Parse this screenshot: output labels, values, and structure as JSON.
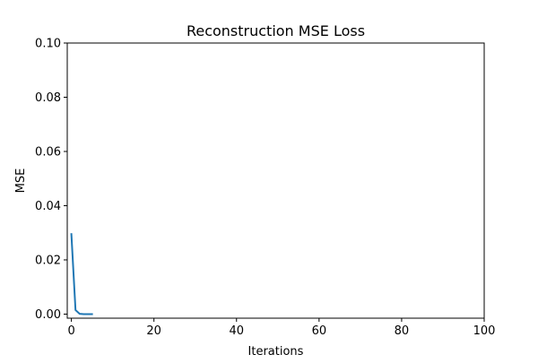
{
  "chart_data": {
    "type": "line",
    "title": "Reconstruction MSE Loss",
    "xlabel": "Iterations",
    "ylabel": "MSE",
    "xlim": [
      -1,
      100
    ],
    "ylim": [
      -0.0015,
      0.1
    ],
    "xticks": [
      0,
      20,
      40,
      60,
      80,
      100
    ],
    "xtick_labels": [
      "0",
      "20",
      "40",
      "60",
      "80",
      "100"
    ],
    "yticks": [
      0.0,
      0.02,
      0.04,
      0.06,
      0.08,
      0.1
    ],
    "ytick_labels": [
      "0.00",
      "0.02",
      "0.04",
      "0.06",
      "0.08",
      "0.10"
    ],
    "grid": false,
    "series": [
      {
        "color": "#1f77b4",
        "x": [
          0,
          1,
          2,
          3,
          4,
          5
        ],
        "y": [
          0.0295,
          0.0015,
          0.0001,
          0.0,
          0.0,
          0.0
        ]
      }
    ]
  }
}
